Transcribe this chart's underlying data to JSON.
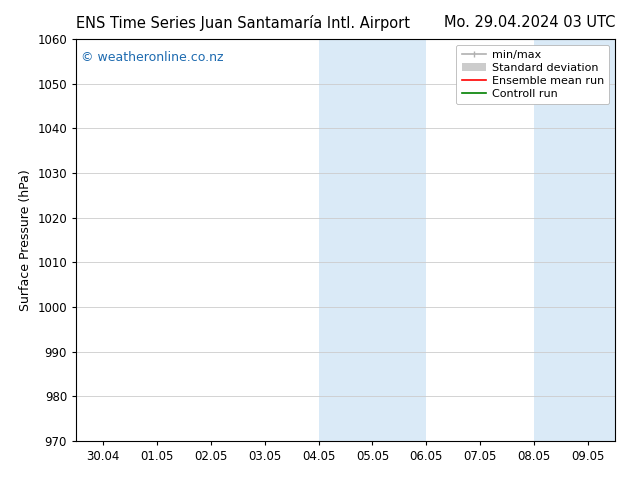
{
  "title_left": "ENS Time Series Juan Santamaría Intl. Airport",
  "title_right": "Mo. 29.04.2024 03 UTC",
  "ylabel": "Surface Pressure (hPa)",
  "ylim": [
    970,
    1060
  ],
  "yticks": [
    970,
    980,
    990,
    1000,
    1010,
    1020,
    1030,
    1040,
    1050,
    1060
  ],
  "xtick_labels": [
    "30.04",
    "01.05",
    "02.05",
    "03.05",
    "04.05",
    "05.05",
    "06.05",
    "07.05",
    "08.05",
    "09.05"
  ],
  "watermark": "© weatheronline.co.nz",
  "watermark_color": "#1e6bb0",
  "background_color": "#ffffff",
  "plot_bg_color": "#ffffff",
  "shaded_regions": [
    {
      "xstart": 4.0,
      "xend": 5.0,
      "color": "#daeaf7"
    },
    {
      "xstart": 5.0,
      "xend": 6.0,
      "color": "#daeaf7"
    },
    {
      "xstart": 8.0,
      "xend": 9.0,
      "color": "#daeaf7"
    },
    {
      "xstart": 9.0,
      "xend": 10.0,
      "color": "#daeaf7"
    }
  ],
  "legend_entries": [
    {
      "label": "min/max",
      "color": "#b0b0b0",
      "lw": 1.2
    },
    {
      "label": "Standard deviation",
      "color": "#cccccc",
      "lw": 6
    },
    {
      "label": "Ensemble mean run",
      "color": "#ff0000",
      "lw": 1.2
    },
    {
      "label": "Controll run",
      "color": "#008000",
      "lw": 1.2
    }
  ],
  "grid_color": "#cccccc",
  "spine_color": "#000000",
  "tick_color": "#000000",
  "font_size_title": 10.5,
  "font_size_axis_label": 9,
  "font_size_legend": 8,
  "font_size_watermark": 9,
  "tick_label_fontsize": 8.5
}
